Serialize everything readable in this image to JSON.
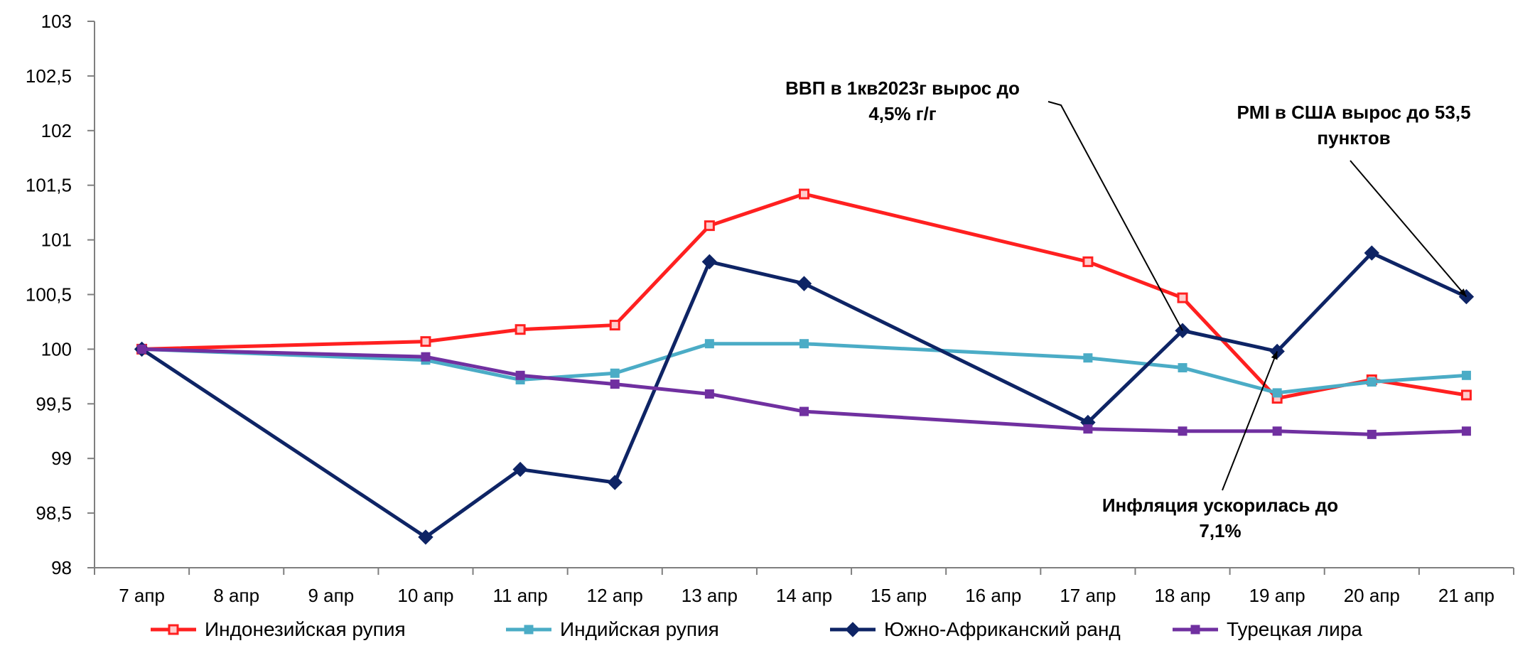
{
  "chart_data": {
    "type": "line",
    "categories": [
      "7 апр",
      "8 апр",
      "9 апр",
      "10 апр",
      "11 апр",
      "12 апр",
      "13 апр",
      "14 апр",
      "15 апр",
      "16 апр",
      "17 апр",
      "18 апр",
      "19 апр",
      "20 апр",
      "21 апр"
    ],
    "ylim": [
      98,
      103
    ],
    "yticks": [
      "98",
      "98,5",
      "99",
      "99,5",
      "100",
      "100,5",
      "101",
      "101,5",
      "102",
      "102,5",
      "103"
    ],
    "grid": false,
    "legend_position": "bottom",
    "series": [
      {
        "name": "Индонезийская рупия",
        "color": "#ff2020",
        "marker": "square",
        "points": [
          [
            0,
            100.0
          ],
          [
            3,
            100.07
          ],
          [
            4,
            100.18
          ],
          [
            5,
            100.22
          ],
          [
            6,
            101.13
          ],
          [
            7,
            101.42
          ],
          [
            10,
            100.8
          ],
          [
            11,
            100.47
          ],
          [
            12,
            99.55
          ],
          [
            13,
            99.72
          ],
          [
            14,
            99.58
          ]
        ]
      },
      {
        "name": "Индийская рупия",
        "color": "#4bacc6",
        "marker": "square",
        "points": [
          [
            0,
            100.0
          ],
          [
            3,
            99.9
          ],
          [
            4,
            99.72
          ],
          [
            5,
            99.78
          ],
          [
            6,
            100.05
          ],
          [
            7,
            100.05
          ],
          [
            10,
            99.92
          ],
          [
            11,
            99.83
          ],
          [
            12,
            99.6
          ],
          [
            13,
            99.7
          ],
          [
            14,
            99.76
          ]
        ]
      },
      {
        "name": "Южно-Африканский ранд",
        "color": "#0e2465",
        "marker": "diamond",
        "points": [
          [
            0,
            100.0
          ],
          [
            3,
            98.28
          ],
          [
            4,
            98.9
          ],
          [
            5,
            98.78
          ],
          [
            6,
            100.8
          ],
          [
            7,
            100.6
          ],
          [
            10,
            99.33
          ],
          [
            11,
            100.17
          ],
          [
            12,
            99.98
          ],
          [
            13,
            100.88
          ],
          [
            14,
            100.48
          ]
        ]
      },
      {
        "name": "Турецкая лира",
        "color": "#7030a0",
        "marker": "square",
        "points": [
          [
            0,
            100.0
          ],
          [
            3,
            99.93
          ],
          [
            4,
            99.76
          ],
          [
            5,
            99.68
          ],
          [
            6,
            99.59
          ],
          [
            7,
            99.43
          ],
          [
            10,
            99.27
          ],
          [
            11,
            99.25
          ],
          [
            12,
            99.25
          ],
          [
            13,
            99.22
          ],
          [
            14,
            99.25
          ]
        ]
      }
    ],
    "annotations": [
      {
        "lines": [
          "ВВП в 1кв2023г вырос до",
          "4,5% г/г"
        ],
        "target": [
          11,
          100.17
        ]
      },
      {
        "lines": [
          "PMI в США вырос до 53,5",
          "пунктов"
        ],
        "target": [
          14,
          100.48
        ]
      },
      {
        "lines": [
          "Инфляция ускорилась до",
          "7,1%"
        ],
        "target": [
          12,
          99.98
        ]
      }
    ]
  }
}
